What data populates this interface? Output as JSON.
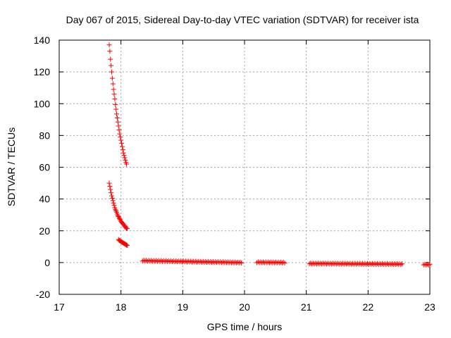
{
  "chart_data": {
    "type": "scatter",
    "title": "Day 067 of 2015, Sidereal Day-to-day VTEC variation (SDTVAR) for receiver ista",
    "xlabel": "GPS time / hours",
    "ylabel": "SDTVAR / TECUs",
    "xlim": [
      17,
      23
    ],
    "ylim": [
      -20,
      140
    ],
    "xticks": [
      "17",
      "18",
      "19",
      "20",
      "21",
      "22",
      "23"
    ],
    "yticks": [
      "-20",
      "0",
      "20",
      "40",
      "60",
      "80",
      "100",
      "120",
      "140"
    ],
    "grid": true,
    "marker": "plus",
    "color": "#ff0000",
    "series": [
      {
        "points": [
          [
            17.81,
            137
          ],
          [
            17.82,
            133
          ],
          [
            17.83,
            128
          ],
          [
            17.84,
            124
          ],
          [
            17.85,
            120
          ],
          [
            17.86,
            116
          ],
          [
            17.87,
            112.5
          ],
          [
            17.88,
            109
          ],
          [
            17.89,
            106
          ],
          [
            17.9,
            103
          ],
          [
            17.91,
            99.5
          ],
          [
            17.92,
            96.5
          ],
          [
            17.93,
            93.5
          ],
          [
            17.94,
            91
          ],
          [
            17.95,
            88.5
          ],
          [
            17.96,
            86
          ],
          [
            17.97,
            83.5
          ],
          [
            17.98,
            81
          ],
          [
            17.99,
            79
          ],
          [
            18.0,
            77
          ],
          [
            18.01,
            75
          ],
          [
            18.02,
            73
          ],
          [
            18.03,
            71
          ],
          [
            18.04,
            69
          ],
          [
            18.05,
            67.5
          ],
          [
            18.06,
            66
          ],
          [
            18.07,
            64.5
          ],
          [
            18.08,
            63
          ],
          [
            18.09,
            62
          ]
        ]
      },
      {
        "points": [
          [
            17.81,
            50
          ],
          [
            17.82,
            48
          ],
          [
            17.83,
            46
          ],
          [
            17.84,
            44
          ],
          [
            17.85,
            42
          ],
          [
            17.86,
            40.5
          ],
          [
            17.87,
            39
          ],
          [
            17.88,
            37.5
          ],
          [
            17.89,
            36
          ],
          [
            17.9,
            34.5
          ],
          [
            17.91,
            33.5
          ],
          [
            17.92,
            32.5
          ],
          [
            17.93,
            31.5
          ],
          [
            17.94,
            30.5
          ],
          [
            17.95,
            29.5
          ],
          [
            17.96,
            29
          ],
          [
            17.97,
            28
          ],
          [
            17.98,
            27.5
          ],
          [
            17.99,
            27
          ],
          [
            18.0,
            26
          ],
          [
            18.01,
            25.5
          ],
          [
            18.02,
            25
          ],
          [
            18.03,
            24.5
          ],
          [
            18.04,
            24
          ],
          [
            18.05,
            23.5
          ],
          [
            18.06,
            23
          ],
          [
            18.07,
            22.5
          ],
          [
            18.08,
            22
          ],
          [
            18.09,
            21.5
          ],
          [
            18.1,
            21.5
          ]
        ]
      },
      {
        "points": [
          [
            17.96,
            14.5
          ],
          [
            17.97,
            14
          ],
          [
            17.98,
            13.8
          ],
          [
            17.99,
            13.5
          ],
          [
            18.0,
            13.3
          ],
          [
            18.01,
            13
          ],
          [
            18.02,
            12.8
          ],
          [
            18.03,
            12.5
          ],
          [
            18.04,
            12.3
          ],
          [
            18.05,
            12
          ],
          [
            18.06,
            11.8
          ],
          [
            18.07,
            11.5
          ],
          [
            18.08,
            11.3
          ],
          [
            18.09,
            11
          ],
          [
            18.1,
            10.8
          ]
        ]
      },
      {
        "segments": [
          {
            "x_start": 18.35,
            "x_end": 19.95,
            "y_start": 1.2,
            "y_end": 0.0,
            "step": 0.02
          },
          {
            "x_start": 20.2,
            "x_end": 20.65,
            "y_start": 0.2,
            "y_end": 0.0,
            "step": 0.02
          },
          {
            "x_start": 21.05,
            "x_end": 22.55,
            "y_start": -0.6,
            "y_end": -1.0,
            "step": 0.02
          },
          {
            "x_start": 22.9,
            "x_end": 23.0,
            "y_start": -1.2,
            "y_end": -1.3,
            "step": 0.02
          }
        ]
      }
    ]
  }
}
